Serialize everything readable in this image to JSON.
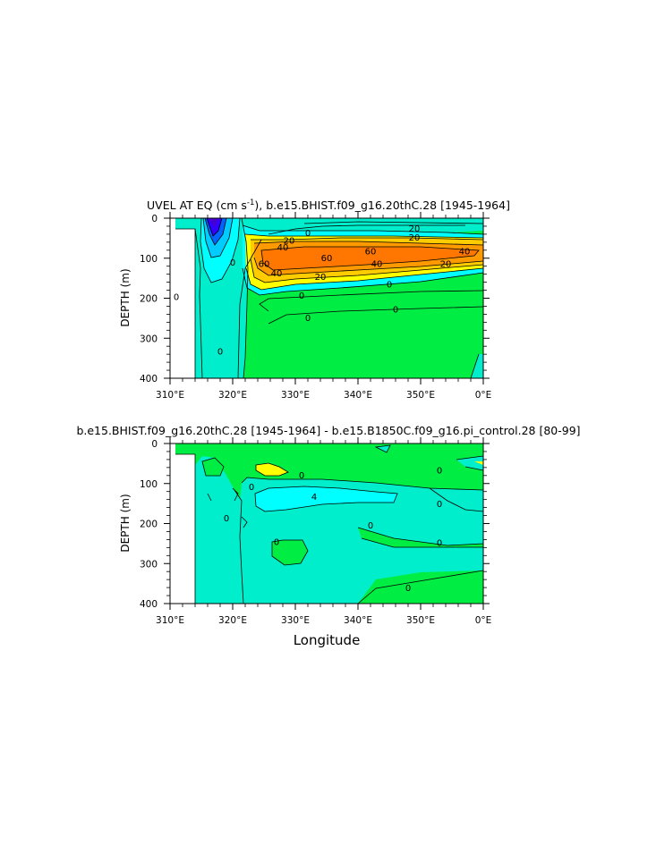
{
  "chart_data": [
    {
      "type": "heatmap",
      "title": "UVEL AT EQ (cm s",
      "title_sup": "-1",
      "title_rest": "), b.e15.BHIST.f09_g16.20thC.28  [1945-1964]",
      "ylabel": "DEPTH (m)",
      "xlabel": "",
      "x_ticks": [
        "310°E",
        "320°E",
        "330°E",
        "340°E",
        "350°E",
        "0°E"
      ],
      "y_ticks": [
        "0",
        "100",
        "200",
        "300",
        "400"
      ],
      "xlim": [
        310,
        360
      ],
      "ylim": [
        0,
        400
      ],
      "contour_labels": [
        {
          "text": "20",
          "x": 349,
          "y": 25
        },
        {
          "text": "0",
          "x": 332,
          "y": 36
        },
        {
          "text": "20",
          "x": 349,
          "y": 47
        },
        {
          "text": "20",
          "x": 329,
          "y": 55
        },
        {
          "text": "40",
          "x": 328,
          "y": 72
        },
        {
          "text": "60",
          "x": 342,
          "y": 82
        },
        {
          "text": "40",
          "x": 357,
          "y": 82
        },
        {
          "text": "60",
          "x": 335,
          "y": 98
        },
        {
          "text": "60",
          "x": 325,
          "y": 113
        },
        {
          "text": "40",
          "x": 343,
          "y": 113
        },
        {
          "text": "20",
          "x": 354,
          "y": 113
        },
        {
          "text": "40",
          "x": 327,
          "y": 136
        },
        {
          "text": "20",
          "x": 334,
          "y": 145
        },
        {
          "text": "0",
          "x": 345,
          "y": 164
        },
        {
          "text": "0",
          "x": 331,
          "y": 192
        },
        {
          "text": "0",
          "x": 346,
          "y": 227
        },
        {
          "text": "0",
          "x": 332,
          "y": 248
        },
        {
          "text": "0",
          "x": 320,
          "y": 110
        },
        {
          "text": "0",
          "x": 311,
          "y": 195
        },
        {
          "text": "0",
          "x": 318,
          "y": 332
        }
      ]
    },
    {
      "type": "heatmap",
      "title": "b.e15.BHIST.f09_g16.20thC.28  [1945-1964]  -  b.e15.B1850C.f09_g16.pi_control.28  [80-99]",
      "ylabel": "DEPTH (m)",
      "xlabel": "Longitude",
      "x_ticks": [
        "310°E",
        "320°E",
        "330°E",
        "340°E",
        "350°E",
        "0°E"
      ],
      "y_ticks": [
        "0",
        "100",
        "200",
        "300",
        "400"
      ],
      "xlim": [
        310,
        360
      ],
      "ylim": [
        0,
        400
      ],
      "contour_labels": [
        {
          "text": "0",
          "x": 323,
          "y": 107
        },
        {
          "text": "0",
          "x": 331,
          "y": 78
        },
        {
          "text": "4",
          "x": 333,
          "y": 132
        },
        {
          "text": "0",
          "x": 353,
          "y": 66
        },
        {
          "text": "0",
          "x": 353,
          "y": 150
        },
        {
          "text": "0",
          "x": 342,
          "y": 203
        },
        {
          "text": "0",
          "x": 353,
          "y": 247
        },
        {
          "text": "0",
          "x": 327,
          "y": 245
        },
        {
          "text": "0",
          "x": 348,
          "y": 360
        },
        {
          "text": "0",
          "x": 319,
          "y": 185
        }
      ]
    }
  ],
  "colors": {
    "white": "#ffffff",
    "green": "#00ee44",
    "teal": "#00eecc",
    "cyan": "#00ffff",
    "sky": "#00ccff",
    "blue": "#0066ff",
    "indigo": "#3300ff",
    "violet": "#4400cc",
    "yellow": "#ffff00",
    "lightorange": "#ffcc00",
    "orange": "#ff9900",
    "deeporange": "#ff7700"
  }
}
